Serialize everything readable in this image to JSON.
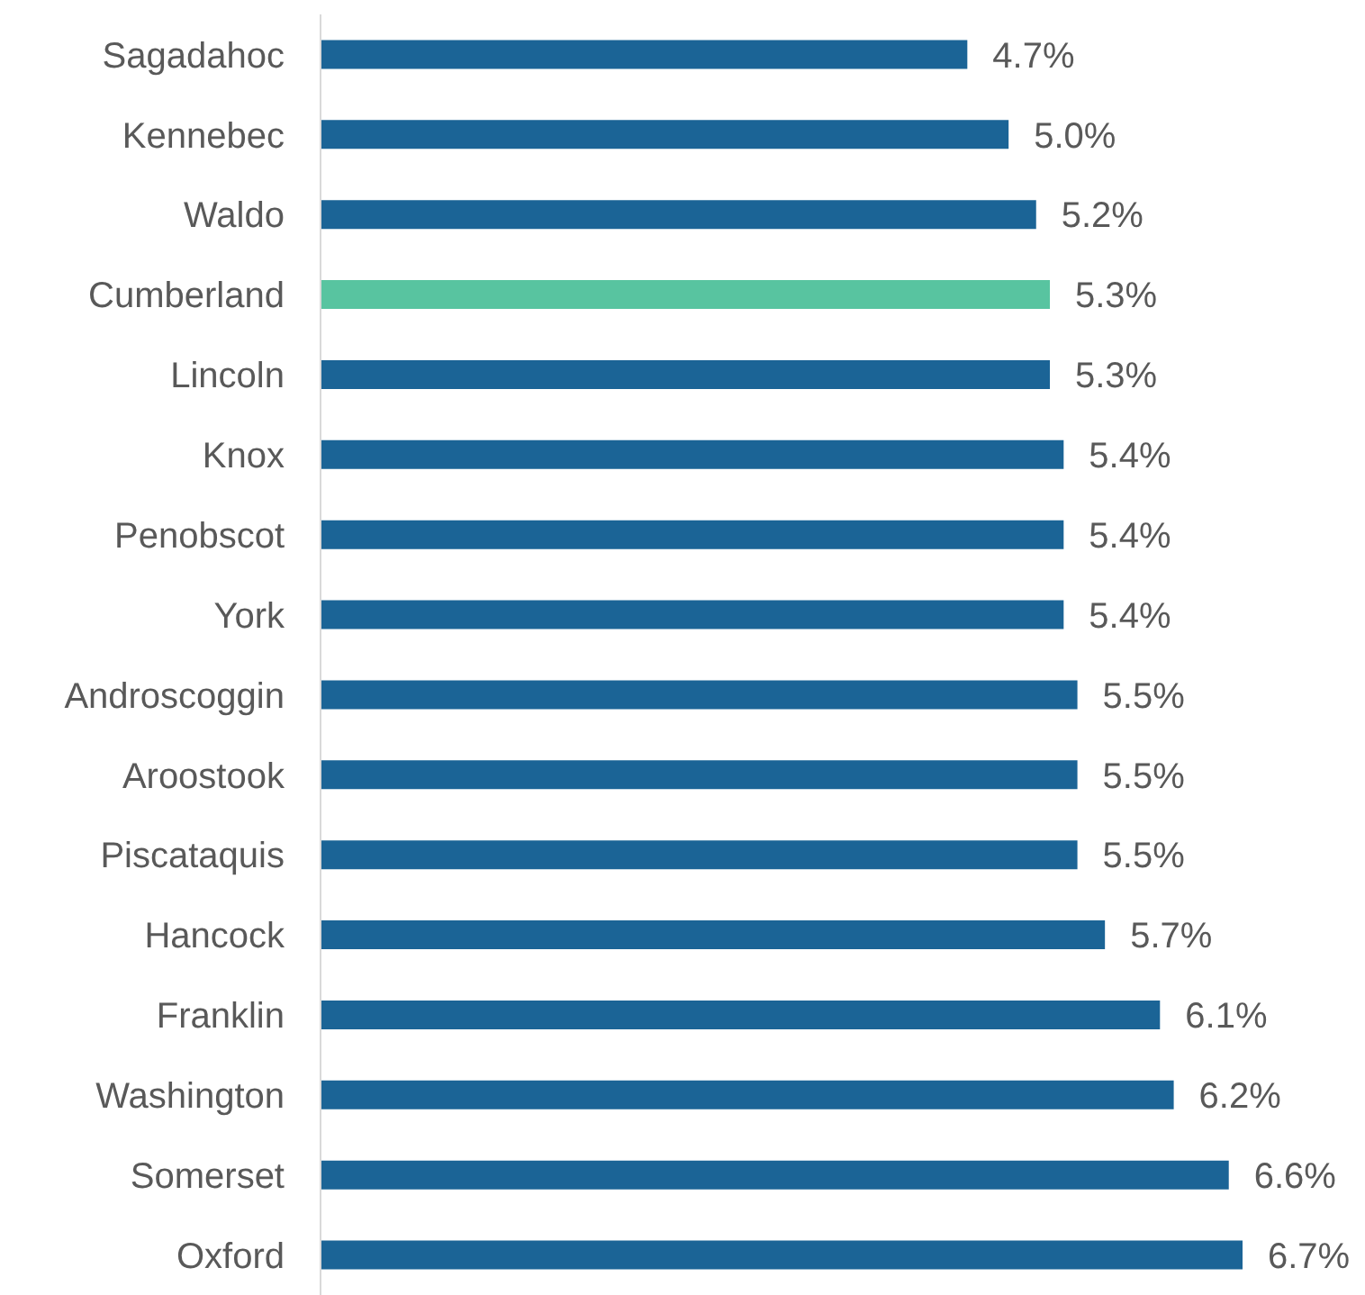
{
  "chart_data": {
    "type": "bar",
    "orientation": "horizontal",
    "categories": [
      "Sagadahoc",
      "Kennebec",
      "Waldo",
      "Cumberland",
      "Lincoln",
      "Knox",
      "Penobscot",
      "York",
      "Androscoggin",
      "Aroostook",
      "Piscataquis",
      "Hancock",
      "Franklin",
      "Washington",
      "Somerset",
      "Oxford"
    ],
    "values": [
      4.7,
      5.0,
      5.2,
      5.3,
      5.3,
      5.4,
      5.4,
      5.4,
      5.5,
      5.5,
      5.5,
      5.7,
      6.1,
      6.2,
      6.6,
      6.7
    ],
    "value_labels": [
      "4.7%",
      "5.0%",
      "5.2%",
      "5.3%",
      "5.3%",
      "5.4%",
      "5.4%",
      "5.4%",
      "5.5%",
      "5.5%",
      "5.5%",
      "5.7%",
      "6.1%",
      "6.2%",
      "6.6%",
      "6.7%"
    ],
    "colors": [
      "#1b6496",
      "#1b6496",
      "#1b6496",
      "#58c4a0",
      "#1b6496",
      "#1b6496",
      "#1b6496",
      "#1b6496",
      "#1b6496",
      "#1b6496",
      "#1b6496",
      "#1b6496",
      "#1b6496",
      "#1b6496",
      "#1b6496",
      "#1b6496"
    ],
    "grid": false,
    "legend": false
  }
}
